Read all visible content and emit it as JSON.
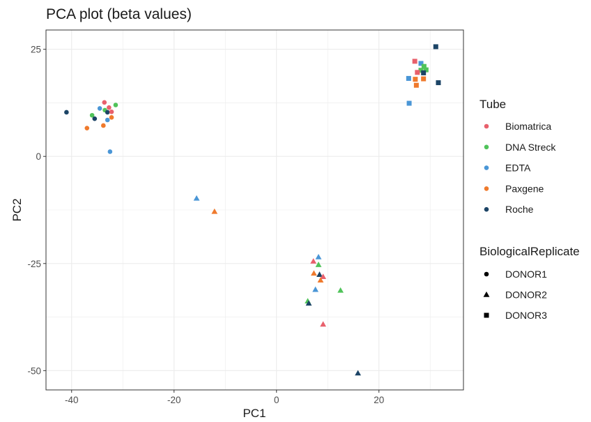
{
  "chart_data": {
    "type": "scatter",
    "title": "PCA plot (beta values)",
    "xlabel": "PC1",
    "ylabel": "PC2",
    "xlim": [
      -45,
      36.5
    ],
    "ylim": [
      -54.5,
      29.5
    ],
    "x_ticks": [
      -40,
      -20,
      0,
      20
    ],
    "y_ticks": [
      25,
      0,
      -25,
      -50
    ],
    "x_tick_labels": [
      "-40",
      "-20",
      "0",
      "20"
    ],
    "y_tick_labels": [
      "25",
      "0",
      "-25",
      "-50"
    ],
    "grid": true,
    "legend_placement": "right",
    "color_legend": {
      "title": "Tube",
      "entries": [
        {
          "name": "Biomatrica",
          "color": "#e8606c"
        },
        {
          "name": "DNA Streck",
          "color": "#50c35a"
        },
        {
          "name": "EDTA",
          "color": "#4a96d6"
        },
        {
          "name": "Paxgene",
          "color": "#ef7a2d"
        },
        {
          "name": "Roche",
          "color": "#1c4466"
        }
      ]
    },
    "shape_legend": {
      "title": "BiologicalReplicate",
      "entries": [
        {
          "name": "DONOR1",
          "shape": "circle"
        },
        {
          "name": "DONOR2",
          "shape": "triangle"
        },
        {
          "name": "DONOR3",
          "shape": "square"
        }
      ]
    },
    "points": [
      {
        "x": -41.0,
        "y": 10.3,
        "tube": "Roche",
        "donor": "DONOR1"
      },
      {
        "x": -37.0,
        "y": 6.6,
        "tube": "Paxgene",
        "donor": "DONOR1"
      },
      {
        "x": -36.0,
        "y": 9.6,
        "tube": "DNA Streck",
        "donor": "DONOR1"
      },
      {
        "x": -35.5,
        "y": 8.8,
        "tube": "Roche",
        "donor": "DONOR1"
      },
      {
        "x": -34.5,
        "y": 11.2,
        "tube": "EDTA",
        "donor": "DONOR1"
      },
      {
        "x": -33.8,
        "y": 7.2,
        "tube": "Paxgene",
        "donor": "DONOR1"
      },
      {
        "x": -33.6,
        "y": 12.6,
        "tube": "Biomatrica",
        "donor": "DONOR1"
      },
      {
        "x": -33.5,
        "y": 10.8,
        "tube": "DNA Streck",
        "donor": "DONOR1"
      },
      {
        "x": -33.0,
        "y": 10.3,
        "tube": "Roche",
        "donor": "DONOR1"
      },
      {
        "x": -33.0,
        "y": 8.5,
        "tube": "EDTA",
        "donor": "DONOR1"
      },
      {
        "x": -32.7,
        "y": 11.4,
        "tube": "Biomatrica",
        "donor": "DONOR1"
      },
      {
        "x": -32.2,
        "y": 10.4,
        "tube": "Biomatrica",
        "donor": "DONOR1"
      },
      {
        "x": -32.2,
        "y": 9.1,
        "tube": "Paxgene",
        "donor": "DONOR1"
      },
      {
        "x": -31.4,
        "y": 12.0,
        "tube": "DNA Streck",
        "donor": "DONOR1"
      },
      {
        "x": -32.5,
        "y": 1.1,
        "tube": "EDTA",
        "donor": "DONOR1"
      },
      {
        "x": -15.6,
        "y": -9.8,
        "tube": "EDTA",
        "donor": "DONOR2"
      },
      {
        "x": -12.1,
        "y": -12.9,
        "tube": "Paxgene",
        "donor": "DONOR2"
      },
      {
        "x": 8.2,
        "y": -23.5,
        "tube": "EDTA",
        "donor": "DONOR2"
      },
      {
        "x": 7.2,
        "y": -24.5,
        "tube": "Biomatrica",
        "donor": "DONOR2"
      },
      {
        "x": 8.2,
        "y": -25.3,
        "tube": "DNA Streck",
        "donor": "DONOR2"
      },
      {
        "x": 7.3,
        "y": -27.3,
        "tube": "Paxgene",
        "donor": "DONOR2"
      },
      {
        "x": 8.4,
        "y": -27.6,
        "tube": "Roche",
        "donor": "DONOR2"
      },
      {
        "x": 9.1,
        "y": -28.1,
        "tube": "Biomatrica",
        "donor": "DONOR2"
      },
      {
        "x": 8.6,
        "y": -28.9,
        "tube": "Paxgene",
        "donor": "DONOR2"
      },
      {
        "x": 7.6,
        "y": -31.1,
        "tube": "EDTA",
        "donor": "DONOR2"
      },
      {
        "x": 12.5,
        "y": -31.3,
        "tube": "DNA Streck",
        "donor": "DONOR2"
      },
      {
        "x": 6.1,
        "y": -33.8,
        "tube": "DNA Streck",
        "donor": "DONOR2"
      },
      {
        "x": 6.3,
        "y": -34.3,
        "tube": "Roche",
        "donor": "DONOR2"
      },
      {
        "x": 9.1,
        "y": -39.2,
        "tube": "Biomatrica",
        "donor": "DONOR2"
      },
      {
        "x": 15.9,
        "y": -50.6,
        "tube": "Roche",
        "donor": "DONOR2"
      },
      {
        "x": 31.1,
        "y": 25.6,
        "tube": "Roche",
        "donor": "DONOR3"
      },
      {
        "x": 27.0,
        "y": 22.2,
        "tube": "Biomatrica",
        "donor": "DONOR3"
      },
      {
        "x": 28.2,
        "y": 21.7,
        "tube": "EDTA",
        "donor": "DONOR3"
      },
      {
        "x": 28.8,
        "y": 21.0,
        "tube": "DNA Streck",
        "donor": "DONOR3"
      },
      {
        "x": 29.2,
        "y": 20.2,
        "tube": "DNA Streck",
        "donor": "DONOR3"
      },
      {
        "x": 28.2,
        "y": 20.1,
        "tube": "DNA Streck",
        "donor": "DONOR3"
      },
      {
        "x": 27.5,
        "y": 19.6,
        "tube": "Biomatrica",
        "donor": "DONOR3"
      },
      {
        "x": 28.7,
        "y": 19.5,
        "tube": "Roche",
        "donor": "DONOR3"
      },
      {
        "x": 25.8,
        "y": 18.2,
        "tube": "EDTA",
        "donor": "DONOR3"
      },
      {
        "x": 27.1,
        "y": 18.0,
        "tube": "Paxgene",
        "donor": "DONOR3"
      },
      {
        "x": 28.7,
        "y": 18.1,
        "tube": "Paxgene",
        "donor": "DONOR3"
      },
      {
        "x": 31.6,
        "y": 17.2,
        "tube": "Roche",
        "donor": "DONOR3"
      },
      {
        "x": 27.3,
        "y": 16.6,
        "tube": "Paxgene",
        "donor": "DONOR3"
      },
      {
        "x": 25.9,
        "y": 12.4,
        "tube": "EDTA",
        "donor": "DONOR3"
      }
    ]
  }
}
